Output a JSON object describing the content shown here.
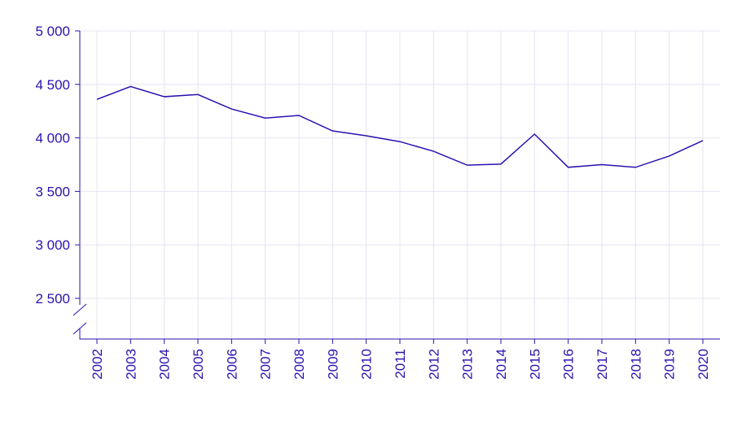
{
  "chart_data": {
    "type": "line",
    "categories": [
      "2002",
      "2003",
      "2004",
      "2005",
      "2006",
      "2007",
      "2008",
      "2009",
      "2010",
      "2011",
      "2012",
      "2013",
      "2014",
      "2015",
      "2016",
      "2017",
      "2018",
      "2019",
      "2020"
    ],
    "values": [
      4360,
      4480,
      4385,
      4405,
      4270,
      4185,
      4210,
      4065,
      4020,
      3965,
      3875,
      3745,
      3755,
      4035,
      3725,
      3750,
      3725,
      3830,
      3975
    ],
    "color": "#2a12b0",
    "ylim": [
      2500,
      5000
    ],
    "yticks": [
      {
        "value": 2500,
        "label": "2 500"
      },
      {
        "value": 3000,
        "label": "3 000"
      },
      {
        "value": 3500,
        "label": "3 500"
      },
      {
        "value": 4000,
        "label": "4 000"
      },
      {
        "value": 4500,
        "label": "4 500"
      },
      {
        "value": 5000,
        "label": "5 000"
      }
    ],
    "grid": true
  }
}
